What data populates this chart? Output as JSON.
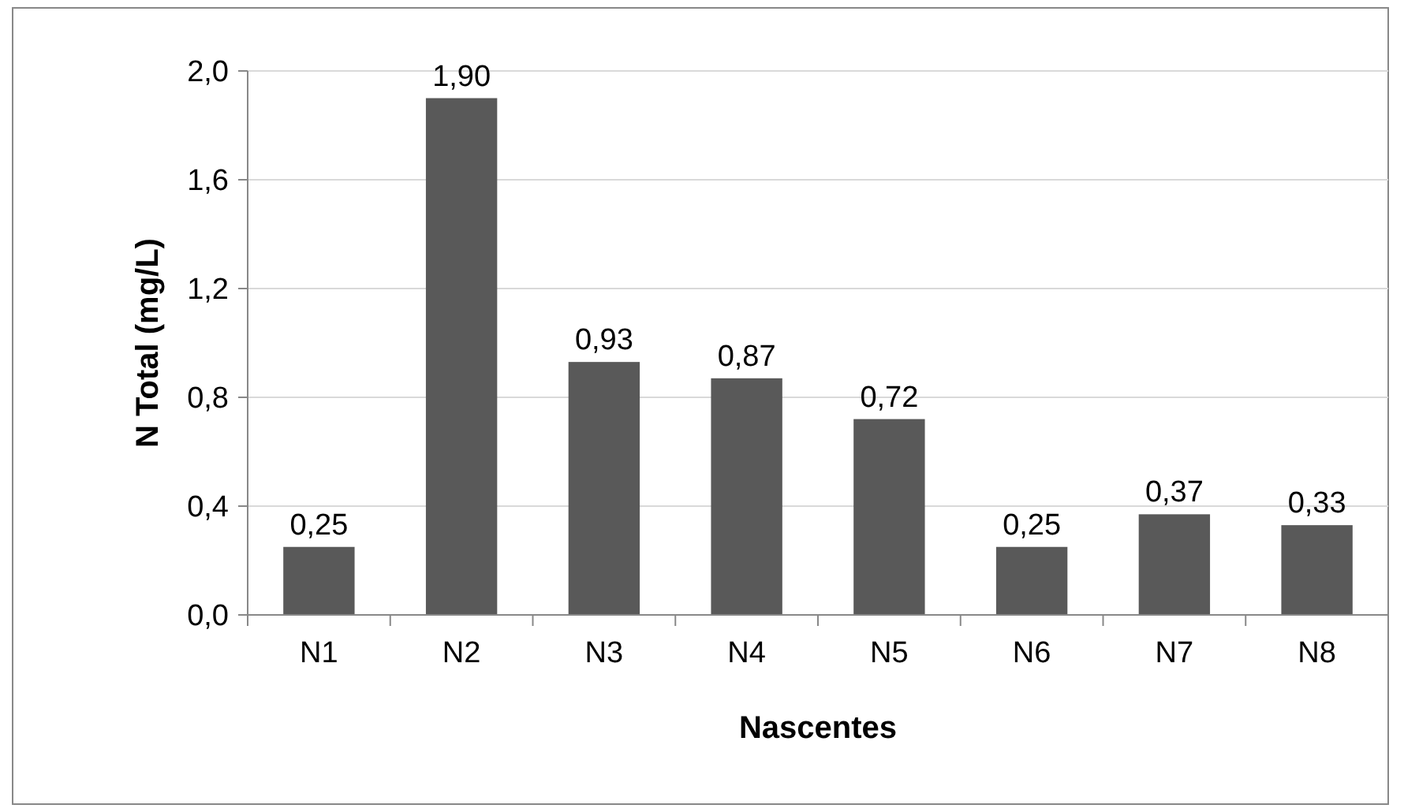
{
  "chart_data": {
    "type": "bar",
    "xlabel": "Nascentes",
    "ylabel": "N Total  (mg/L)",
    "categories": [
      "N1",
      "N2",
      "N3",
      "N4",
      "N5",
      "N6",
      "N7",
      "N8"
    ],
    "values": [
      0.25,
      1.9,
      0.93,
      0.87,
      0.72,
      0.25,
      0.37,
      0.33
    ],
    "value_labels": [
      "0,25",
      "1,90",
      "0,93",
      "0,87",
      "0,72",
      "0,25",
      "0,37",
      "0,33"
    ],
    "color": "#595959",
    "ylim": [
      0,
      2
    ],
    "yticks": [
      {
        "value": 0,
        "label": "0,0"
      },
      {
        "value": 0.4,
        "label": "0,4"
      },
      {
        "value": 0.8,
        "label": "0,8"
      },
      {
        "value": 1.2,
        "label": "1,2"
      },
      {
        "value": 1.6,
        "label": "1,6"
      },
      {
        "value": 2,
        "label": "2,0"
      }
    ],
    "grid": "y"
  }
}
